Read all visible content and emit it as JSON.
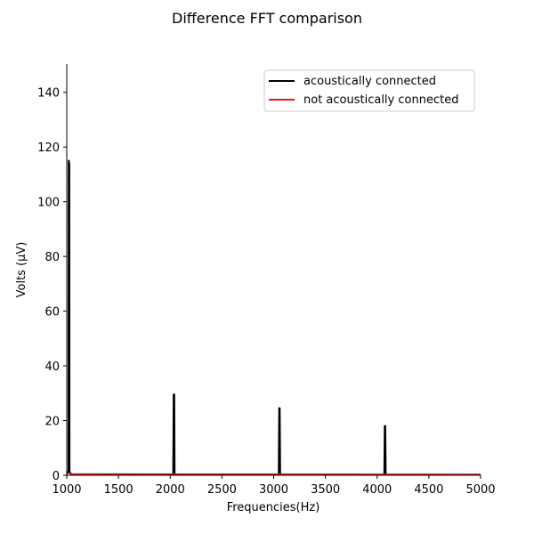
{
  "chart_data": {
    "type": "line",
    "title": "Difference FFT comparison",
    "xlabel": "Frequencies(Hz)",
    "ylabel": "Volts (μV)",
    "xlim": [
      1000,
      5000
    ],
    "ylim": [
      0,
      150
    ],
    "xticks": [
      1000,
      1500,
      2000,
      2500,
      3000,
      3500,
      4000,
      4500,
      5000
    ],
    "yticks": [
      0,
      20,
      40,
      60,
      80,
      100,
      120,
      140
    ],
    "grid": false,
    "legend_position": "top-right",
    "series": [
      {
        "name": "acoustically connected",
        "color": "#000000",
        "x": [
          1000,
          1018,
          1020,
          1022,
          1024,
          1026,
          1028,
          1050,
          2030,
          2034,
          2036,
          2038,
          2042,
          3050,
          3054,
          3056,
          3058,
          3062,
          4070,
          4074,
          4076,
          4078,
          4082,
          5000
        ],
        "y": [
          0.5,
          1.5,
          115,
          113,
          114,
          2,
          0.8,
          0.4,
          0.3,
          29.5,
          29,
          29.5,
          0.3,
          0.3,
          24.5,
          24,
          24.5,
          0.3,
          0.2,
          18,
          17.5,
          18,
          0.2,
          0.2
        ]
      },
      {
        "name": "not acoustically connected",
        "color": "#e31a1c",
        "x": [
          1000,
          1020,
          1040,
          1500,
          2000,
          2500,
          3000,
          3500,
          4000,
          4500,
          5000
        ],
        "y": [
          0.5,
          0.8,
          0.4,
          0.3,
          0.3,
          0.3,
          0.3,
          0.3,
          0.25,
          0.3,
          0.2
        ]
      }
    ]
  }
}
